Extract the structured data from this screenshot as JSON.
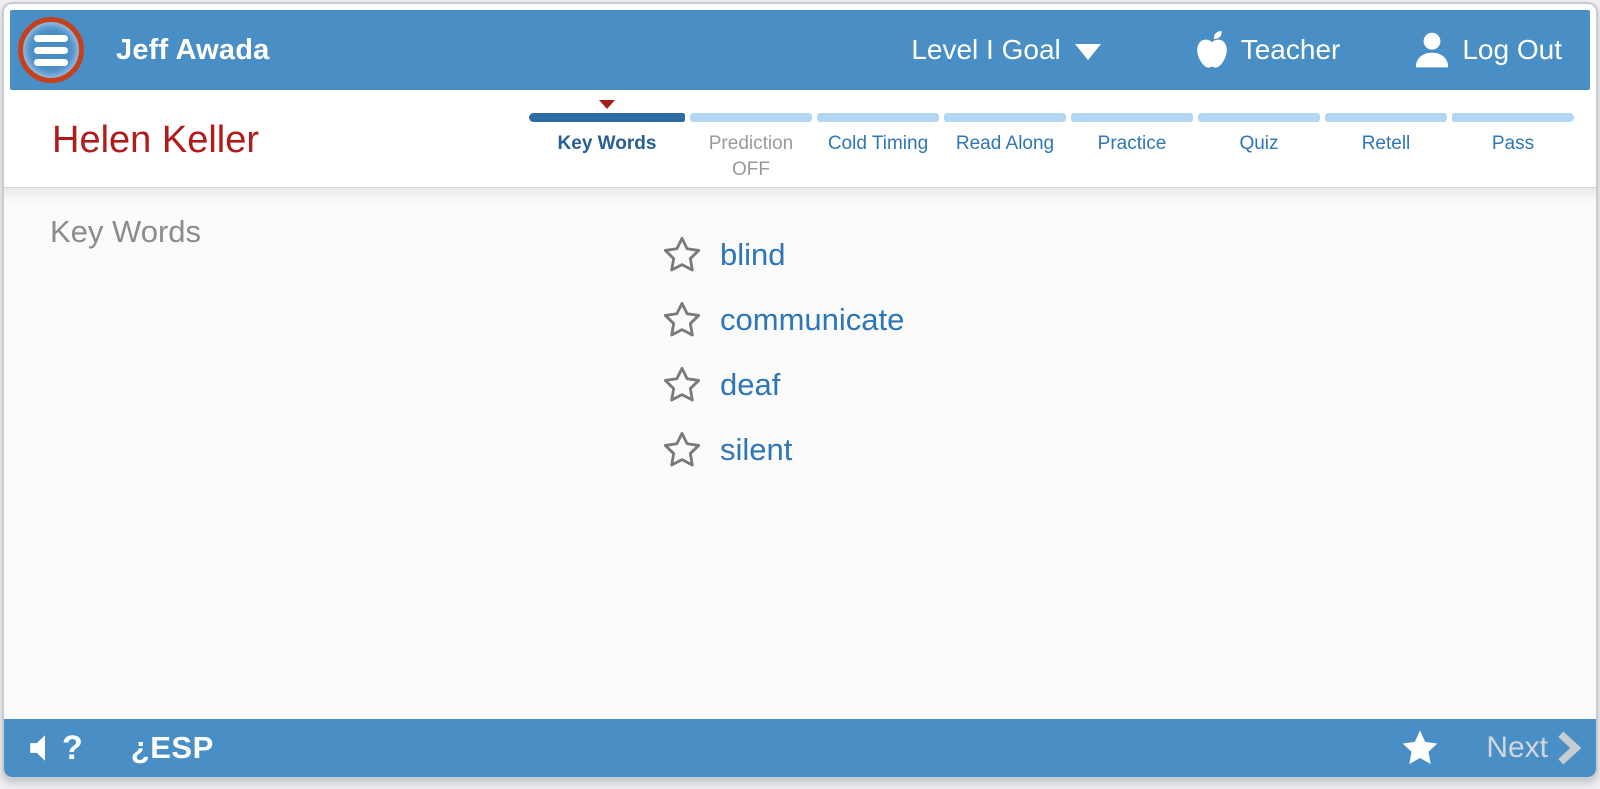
{
  "header": {
    "user_name": "Jeff Awada",
    "level_goal_label": "Level I Goal",
    "teacher_label": "Teacher",
    "logout_label": "Log Out"
  },
  "story": {
    "title": "Helen Keller"
  },
  "tabs": [
    {
      "label": "Key Words",
      "state": "active"
    },
    {
      "label": "Prediction",
      "sublabel": "OFF",
      "state": "off"
    },
    {
      "label": "Cold Timing",
      "state": "normal"
    },
    {
      "label": "Read Along",
      "state": "normal"
    },
    {
      "label": "Practice",
      "state": "normal"
    },
    {
      "label": "Quiz",
      "state": "normal"
    },
    {
      "label": "Retell",
      "state": "normal"
    },
    {
      "label": "Pass",
      "state": "normal"
    }
  ],
  "main": {
    "heading": "Key Words",
    "words": [
      "blind",
      "communicate",
      "deaf",
      "silent"
    ]
  },
  "footer": {
    "audio_help_label": "?",
    "esp_label": "¿ESP",
    "next_label": "Next"
  },
  "colors": {
    "bar_blue": "#4a8ec6",
    "active_tab_blue": "#2c6ba4",
    "inactive_tab_blue": "#b3d7f2",
    "link_blue": "#2d77b8",
    "title_red": "#b21b1b",
    "marker_red": "#a51d1d",
    "menu_ring_red": "#c8401a",
    "heading_gray": "#8c8c8c",
    "disabled_gray": "#9a9a9a"
  }
}
